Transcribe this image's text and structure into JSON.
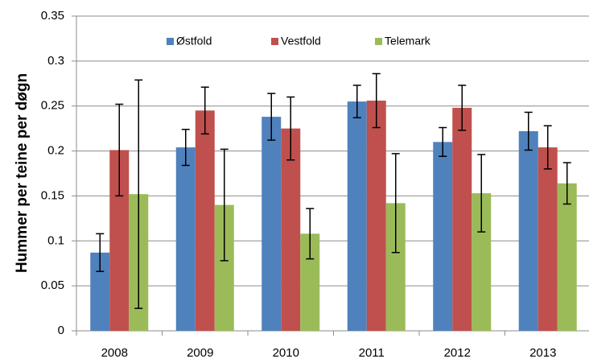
{
  "chart_data": {
    "type": "bar",
    "y_label": "Hummer per teine per døgn",
    "categories": [
      "2008",
      "2009",
      "2010",
      "2011",
      "2012",
      "2013"
    ],
    "series": [
      {
        "name": "Østfold",
        "color": "#4f81bd",
        "values": [
          0.087,
          0.204,
          0.238,
          0.255,
          0.21,
          0.222
        ],
        "errors": [
          0.021,
          0.02,
          0.026,
          0.018,
          0.016,
          0.021
        ]
      },
      {
        "name": "Vestfold",
        "color": "#c0504d",
        "values": [
          0.201,
          0.245,
          0.225,
          0.256,
          0.248,
          0.204
        ],
        "errors": [
          0.051,
          0.026,
          0.035,
          0.03,
          0.025,
          0.024
        ]
      },
      {
        "name": "Telemark",
        "color": "#9bbb59",
        "values": [
          0.152,
          0.14,
          0.108,
          0.142,
          0.153,
          0.164
        ],
        "errors": [
          0.127,
          0.062,
          0.028,
          0.055,
          0.043,
          0.023
        ]
      }
    ],
    "ylim": [
      0,
      0.35
    ],
    "yticks": [
      0,
      0.05,
      0.1,
      0.15,
      0.2,
      0.25,
      0.3,
      0.35
    ],
    "grid": true,
    "legend": "top"
  }
}
